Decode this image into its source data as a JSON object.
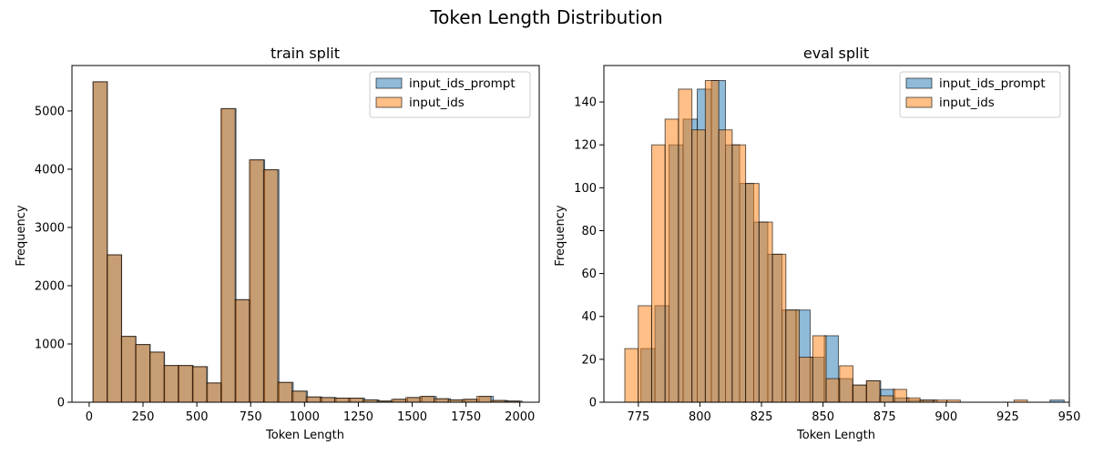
{
  "figure": {
    "title": "Token Length Distribution"
  },
  "colors": {
    "input_ids_prompt": "#1f77b4",
    "input_ids": "#ff7f0e"
  },
  "chart_data": [
    {
      "type": "histogram",
      "title": "train split",
      "xlabel": "Token Length",
      "ylabel": "Frequency",
      "xlim": [
        -80,
        2090
      ],
      "ylim": [
        0,
        5780
      ],
      "xticks": [
        0,
        250,
        500,
        750,
        1000,
        1250,
        1500,
        1750,
        2000
      ],
      "yticks": [
        0,
        1000,
        2000,
        3000,
        4000,
        5000
      ],
      "legend": "top-right",
      "series": [
        {
          "name": "input_ids_prompt",
          "bin_start": 18,
          "bin_width": 66.4,
          "values": [
            5500,
            2530,
            1130,
            990,
            860,
            630,
            630,
            610,
            330,
            5040,
            1760,
            4160,
            3990,
            340,
            190,
            90,
            80,
            70,
            70,
            40,
            20,
            50,
            80,
            100,
            60,
            40,
            50,
            100,
            30,
            20
          ]
        },
        {
          "name": "input_ids",
          "bin_start": 18,
          "bin_width": 66.0,
          "values": [
            5500,
            2530,
            1130,
            990,
            860,
            630,
            630,
            610,
            330,
            5040,
            1760,
            4160,
            3990,
            340,
            190,
            90,
            80,
            70,
            70,
            40,
            20,
            50,
            80,
            100,
            60,
            40,
            50,
            100,
            30,
            20
          ]
        }
      ]
    },
    {
      "type": "histogram",
      "title": "eval split",
      "xlabel": "Token Length",
      "ylabel": "Frequency",
      "xlim": [
        761,
        950
      ],
      "ylim": [
        0,
        157
      ],
      "xticks": [
        775,
        800,
        825,
        850,
        875,
        900,
        925,
        950
      ],
      "yticks": [
        0,
        20,
        40,
        60,
        80,
        100,
        120,
        140
      ],
      "legend": "top-right",
      "series": [
        {
          "name": "input_ids_prompt",
          "bin_start": 776,
          "bin_width": 5.73,
          "values": [
            25,
            45,
            120,
            132,
            146,
            150,
            120,
            102,
            84,
            69,
            43,
            43,
            21,
            31,
            11,
            8,
            10,
            6,
            2,
            1,
            1,
            0,
            0,
            0,
            0,
            0,
            0,
            0,
            0,
            1
          ]
        },
        {
          "name": "input_ids",
          "bin_start": 769.5,
          "bin_width": 5.45,
          "values": [
            25,
            45,
            120,
            132,
            146,
            127,
            150,
            127,
            120,
            102,
            84,
            69,
            43,
            21,
            31,
            11,
            17,
            8,
            10,
            3,
            6,
            2,
            1,
            1,
            1,
            0,
            0,
            0,
            0,
            1
          ]
        }
      ]
    }
  ]
}
